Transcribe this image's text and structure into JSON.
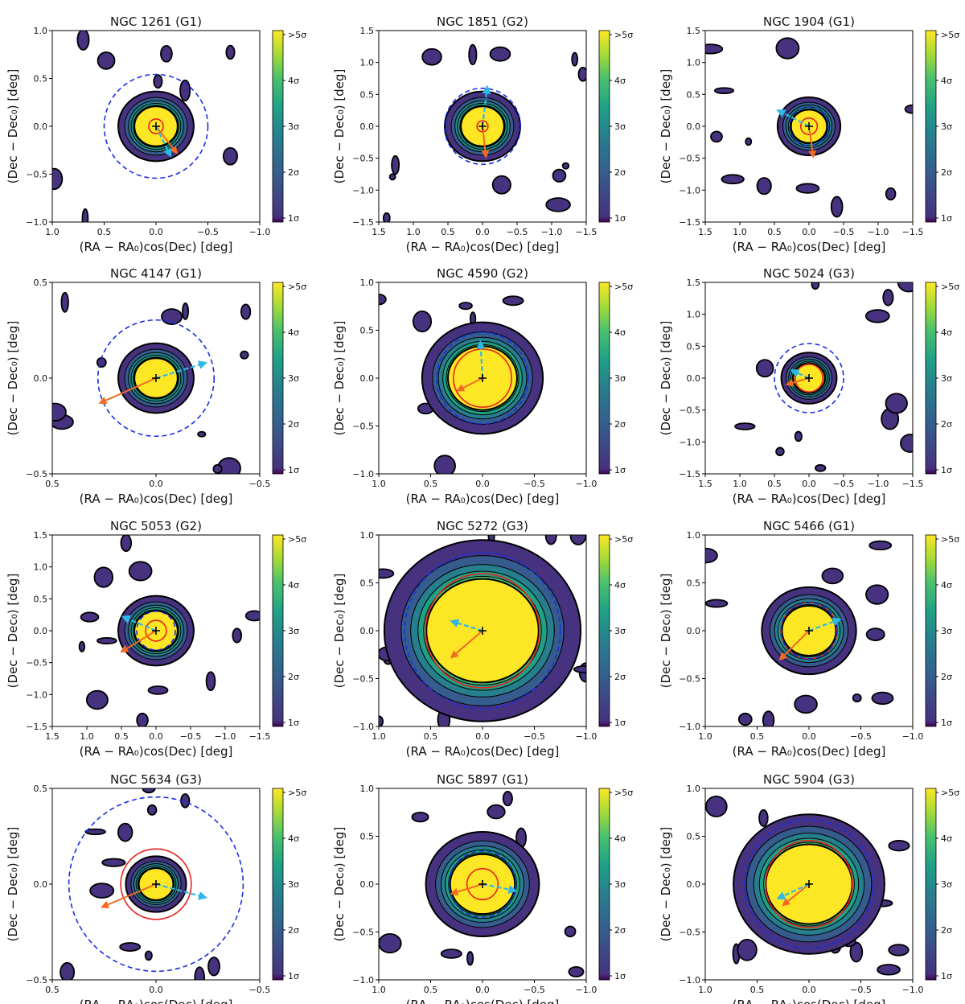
{
  "figure": {
    "type": "multi-panel contour density map grid",
    "rows": 4,
    "cols": 3
  },
  "labels": {
    "xlabel": "(RA − RA₀)cos(Dec) [deg]",
    "ylabel": "(Dec − Dec₀) [deg]",
    "colorbar_ticks": [
      ">5σ",
      "4σ",
      "3σ",
      "2σ",
      "1σ"
    ]
  },
  "colors": {
    "contour_levels": [
      "#46327e",
      "#365c8d",
      "#277f8e",
      "#1fa187",
      "#4ac16d",
      "#a0da39",
      "#fde725"
    ],
    "tidal_radius_circle": "#e8221b",
    "half_light_circle": "#1a2ee0",
    "orbit_arrow": "#f26b22",
    "proper_motion_arrow": "#2fb8e6",
    "contour_outline": "#000000"
  },
  "chart_data": [
    {
      "type": "heatmap",
      "title": "NGC 1261 (G1)",
      "xlim": [
        1.0,
        -1.0
      ],
      "ylim": [
        -1.0,
        1.0
      ],
      "xticks": [
        1.0,
        0.5,
        0.0,
        -0.5,
        -1.0
      ],
      "yticks": [
        -1.0,
        -0.5,
        0.0,
        0.5,
        1.0
      ],
      "core_radius": 0.2,
      "red_radius": 0.07,
      "blue_radius": 0.5,
      "orange_arrow": [
        -0.2,
        -0.28
      ],
      "cyan_arrow": [
        -0.14,
        -0.31
      ]
    },
    {
      "type": "heatmap",
      "title": "NGC 1851 (G2)",
      "xlim": [
        1.5,
        -1.5
      ],
      "ylim": [
        -1.5,
        1.5
      ],
      "xticks": [
        1.5,
        1.0,
        0.5,
        0.0,
        -0.5,
        -1.0,
        -1.5
      ],
      "yticks": [
        -1.5,
        -1.0,
        -0.5,
        0.0,
        0.5,
        1.0,
        1.5
      ],
      "core_radius": 0.3,
      "red_radius": 0.08,
      "blue_radius": 0.55,
      "orange_arrow": [
        -0.05,
        -0.48
      ],
      "cyan_arrow": [
        -0.07,
        0.62
      ]
    },
    {
      "type": "heatmap",
      "title": "NGC 1904 (G1)",
      "xlim": [
        1.5,
        -1.5
      ],
      "ylim": [
        -1.5,
        1.5
      ],
      "xticks": [
        1.5,
        1.0,
        0.5,
        0.0,
        -0.5,
        -1.0,
        -1.5
      ],
      "yticks": [
        -1.5,
        -1.0,
        -0.5,
        0.0,
        0.5,
        1.0,
        1.5
      ],
      "core_radius": 0.25,
      "red_radius": 0.12,
      "blue_radius": 0.28,
      "orange_arrow": [
        -0.06,
        -0.48
      ],
      "cyan_arrow": [
        0.45,
        0.25
      ]
    },
    {
      "type": "heatmap",
      "title": "NGC 4147 (G1)",
      "xlim": [
        0.5,
        -0.5
      ],
      "ylim": [
        -0.5,
        0.5
      ],
      "xticks": [
        0.5,
        0.0,
        -0.5
      ],
      "yticks": [
        -0.5,
        0.0,
        0.5
      ],
      "core_radius": 0.1,
      "red_radius": 0.0,
      "blue_radius": 0.28,
      "orange_arrow": [
        0.27,
        -0.13
      ],
      "cyan_arrow": [
        -0.24,
        0.08
      ]
    },
    {
      "type": "heatmap",
      "title": "NGC 4590 (G2)",
      "xlim": [
        1.0,
        -1.0
      ],
      "ylim": [
        -1.0,
        1.0
      ],
      "xticks": [
        1.0,
        0.5,
        0.0,
        -0.5,
        -1.0
      ],
      "yticks": [
        -1.0,
        -0.5,
        0.0,
        0.5,
        1.0
      ],
      "core_radius": 0.32,
      "red_radius": 0.28,
      "blue_radius": 0.44,
      "orange_arrow": [
        0.24,
        -0.13
      ],
      "cyan_arrow": [
        0.02,
        0.38
      ]
    },
    {
      "type": "heatmap",
      "title": "NGC 5024 (G3)",
      "xlim": [
        1.5,
        -1.5
      ],
      "ylim": [
        -1.5,
        1.5
      ],
      "xticks": [
        1.5,
        1.0,
        0.5,
        0.0,
        -0.5,
        -1.0,
        -1.5
      ],
      "yticks": [
        -1.5,
        -1.0,
        -0.5,
        0.0,
        0.5,
        1.0,
        1.5
      ],
      "core_radius": 0.22,
      "red_radius": 0.2,
      "blue_radius": 0.5,
      "orange_arrow": [
        0.32,
        -0.1
      ],
      "cyan_arrow": [
        0.25,
        0.12
      ]
    },
    {
      "type": "heatmap",
      "title": "NGC 5053 (G2)",
      "xlim": [
        1.5,
        -1.5
      ],
      "ylim": [
        -1.5,
        1.5
      ],
      "xticks": [
        1.5,
        1.0,
        0.5,
        0.0,
        -0.5,
        -1.0,
        -1.5
      ],
      "yticks": [
        -1.5,
        -1.0,
        -0.5,
        0.0,
        0.5,
        1.0,
        1.5
      ],
      "core_radius": 0.3,
      "red_radius": 0.15,
      "blue_radius": 0.28,
      "orange_arrow": [
        0.5,
        -0.33
      ],
      "cyan_arrow": [
        0.48,
        0.22
      ]
    },
    {
      "type": "heatmap",
      "title": "NGC 5272 (G3)",
      "xlim": [
        1.0,
        -1.0
      ],
      "ylim": [
        -1.0,
        1.0
      ],
      "xticks": [
        1.0,
        0.5,
        0.0,
        -0.5,
        -1.0
      ],
      "yticks": [
        -1.0,
        -0.5,
        0.0,
        0.5,
        1.0
      ],
      "core_radius": 0.52,
      "red_radius": 0.55,
      "blue_radius": 0.75,
      "orange_arrow": [
        0.3,
        -0.28
      ],
      "cyan_arrow": [
        0.3,
        0.1
      ]
    },
    {
      "type": "heatmap",
      "title": "NGC 5466 (G1)",
      "xlim": [
        1.0,
        -1.0
      ],
      "ylim": [
        -1.0,
        1.0
      ],
      "xticks": [
        1.0,
        0.5,
        0.0,
        -0.5,
        -1.0
      ],
      "yticks": [
        -1.0,
        -0.5,
        0.0,
        0.5,
        1.0
      ],
      "core_radius": 0.25,
      "red_radius": 0.27,
      "blue_radius": 0.27,
      "orange_arrow": [
        0.28,
        -0.3
      ],
      "cyan_arrow": [
        -0.3,
        0.12
      ]
    },
    {
      "type": "heatmap",
      "title": "NGC 5634 (G3)",
      "xlim": [
        0.5,
        -0.5
      ],
      "ylim": [
        -0.5,
        0.5
      ],
      "xticks": [
        0.5,
        0.0,
        -0.5
      ],
      "yticks": [
        -0.5,
        0.0,
        0.5
      ],
      "core_radius": 0.08,
      "red_radius": 0.17,
      "blue_radius": 0.42,
      "orange_arrow": [
        0.26,
        -0.12
      ],
      "cyan_arrow": [
        -0.24,
        -0.07
      ]
    },
    {
      "type": "heatmap",
      "title": "NGC 5897 (G1)",
      "xlim": [
        1.0,
        -1.0
      ],
      "ylim": [
        -1.0,
        1.0
      ],
      "xticks": [
        1.0,
        0.5,
        0.0,
        -0.5,
        -1.0
      ],
      "yticks": [
        -1.0,
        -0.5,
        0.0,
        0.5,
        1.0
      ],
      "core_radius": 0.3,
      "red_radius": 0.15,
      "blue_radius": 0.32,
      "orange_arrow": [
        0.3,
        -0.1
      ],
      "cyan_arrow": [
        -0.32,
        -0.07
      ]
    },
    {
      "type": "heatmap",
      "title": "NGC 5904 (G3)",
      "xlim": [
        1.0,
        -1.0
      ],
      "ylim": [
        -1.0,
        1.0
      ],
      "xticks": [
        1.0,
        0.5,
        0.0,
        -0.5,
        -1.0
      ],
      "yticks": [
        -1.0,
        -0.5,
        0.0,
        0.5,
        1.0
      ],
      "core_radius": 0.4,
      "red_radius": 0.42,
      "blue_radius": 0.62,
      "orange_arrow": [
        0.25,
        -0.22
      ],
      "cyan_arrow": [
        0.3,
        -0.15
      ]
    }
  ]
}
